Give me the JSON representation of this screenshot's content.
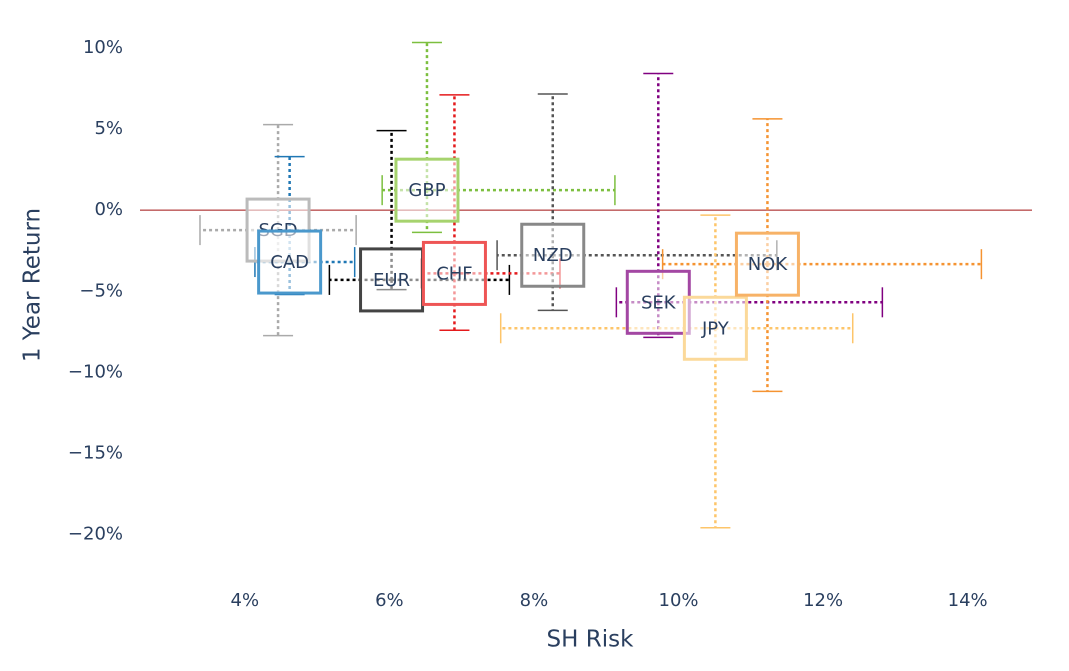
{
  "chart_data": {
    "type": "scatter",
    "x_label": "SH Risk",
    "y_label": "1 Year Return",
    "xlim": [
      2.55,
      14.89
    ],
    "ylim": [
      -23.1,
      11.1
    ],
    "xticks": [
      {
        "value": 4,
        "label": "4%"
      },
      {
        "value": 6,
        "label": "6%"
      },
      {
        "value": 8,
        "label": "8%"
      },
      {
        "value": 10,
        "label": "10%"
      },
      {
        "value": 12,
        "label": "12%"
      },
      {
        "value": 14,
        "label": "14%"
      }
    ],
    "yticks": [
      {
        "value": 10,
        "label": "10%"
      },
      {
        "value": 5,
        "label": "5%"
      },
      {
        "value": 0,
        "label": "0%"
      },
      {
        "value": -5,
        "label": "−5%"
      },
      {
        "value": -10,
        "label": "−10%"
      },
      {
        "value": -15,
        "label": "−15%"
      },
      {
        "value": -20,
        "label": "−20%"
      }
    ],
    "zeroline_color": "#a01010",
    "series": [
      {
        "name": "SGD",
        "color": "#aaaaaa",
        "marker_color": "#bbbbbb",
        "x": [
          4.46
        ],
        "values": [
          -1.23
        ],
        "x_error_minus": [
          1.08
        ],
        "x_error_plus": [
          1.08
        ],
        "y_error_minus": [
          6.5
        ],
        "y_error_plus": [
          6.5
        ]
      },
      {
        "name": "CAD",
        "color": "#1f77b4",
        "marker_color": "#4a98cc",
        "x": [
          4.62
        ],
        "values": [
          -3.2
        ],
        "x_error_minus": [
          0.48
        ],
        "x_error_plus": [
          0.9
        ],
        "y_error_minus": [
          2.0
        ],
        "y_error_plus": [
          6.5
        ]
      },
      {
        "name": "EUR",
        "color": "#000000",
        "marker_color": "#444444",
        "x": [
          6.03
        ],
        "values": [
          -4.3
        ],
        "x_error_minus": [
          0.86
        ],
        "x_error_plus": [
          1.63
        ],
        "y_error_minus": [
          0.6
        ],
        "y_error_plus": [
          9.2
        ]
      },
      {
        "name": "GBP",
        "color": "#7cbf3f",
        "marker_color": "#a6d36e",
        "x": [
          6.52
        ],
        "values": [
          1.23
        ],
        "x_error_minus": [
          0.62
        ],
        "x_error_plus": [
          2.6
        ],
        "y_error_minus": [
          2.6
        ],
        "y_error_plus": [
          9.1
        ]
      },
      {
        "name": "CHF",
        "color": "#e41a1c",
        "marker_color": "#ee5555",
        "x": [
          6.9
        ],
        "values": [
          -3.9
        ],
        "x_error_minus": [
          0.46
        ],
        "x_error_plus": [
          1.46
        ],
        "y_error_minus": [
          3.5
        ],
        "y_error_plus": [
          11.0
        ]
      },
      {
        "name": "NZD",
        "color": "#555555",
        "marker_color": "#888888",
        "x": [
          8.26
        ],
        "values": [
          -2.78
        ],
        "x_error_minus": [
          0.77
        ],
        "x_error_plus": [
          3.1
        ],
        "y_error_minus": [
          3.4
        ],
        "y_error_plus": [
          9.94
        ]
      },
      {
        "name": "SEK",
        "color": "#800080",
        "marker_color": "#a347a3",
        "x": [
          9.72
        ],
        "values": [
          -5.68
        ],
        "x_error_minus": [
          0.58
        ],
        "x_error_plus": [
          3.1
        ],
        "y_error_minus": [
          2.16
        ],
        "y_error_plus": [
          14.1
        ]
      },
      {
        "name": "JPY",
        "color": "#fdc56a",
        "marker_color": "#fbd99a",
        "x": [
          10.51
        ],
        "values": [
          -7.28
        ],
        "x_error_minus": [
          2.97
        ],
        "x_error_plus": [
          1.9
        ],
        "y_error_minus": [
          12.29
        ],
        "y_error_plus": [
          6.97
        ]
      },
      {
        "name": "NOK",
        "color": "#f59331",
        "marker_color": "#f7b267",
        "x": [
          11.23
        ],
        "values": [
          -3.33
        ],
        "x_error_minus": [
          1.45
        ],
        "x_error_plus": [
          2.96
        ],
        "y_error_minus": [
          7.84
        ],
        "y_error_plus": [
          8.95
        ]
      }
    ]
  }
}
